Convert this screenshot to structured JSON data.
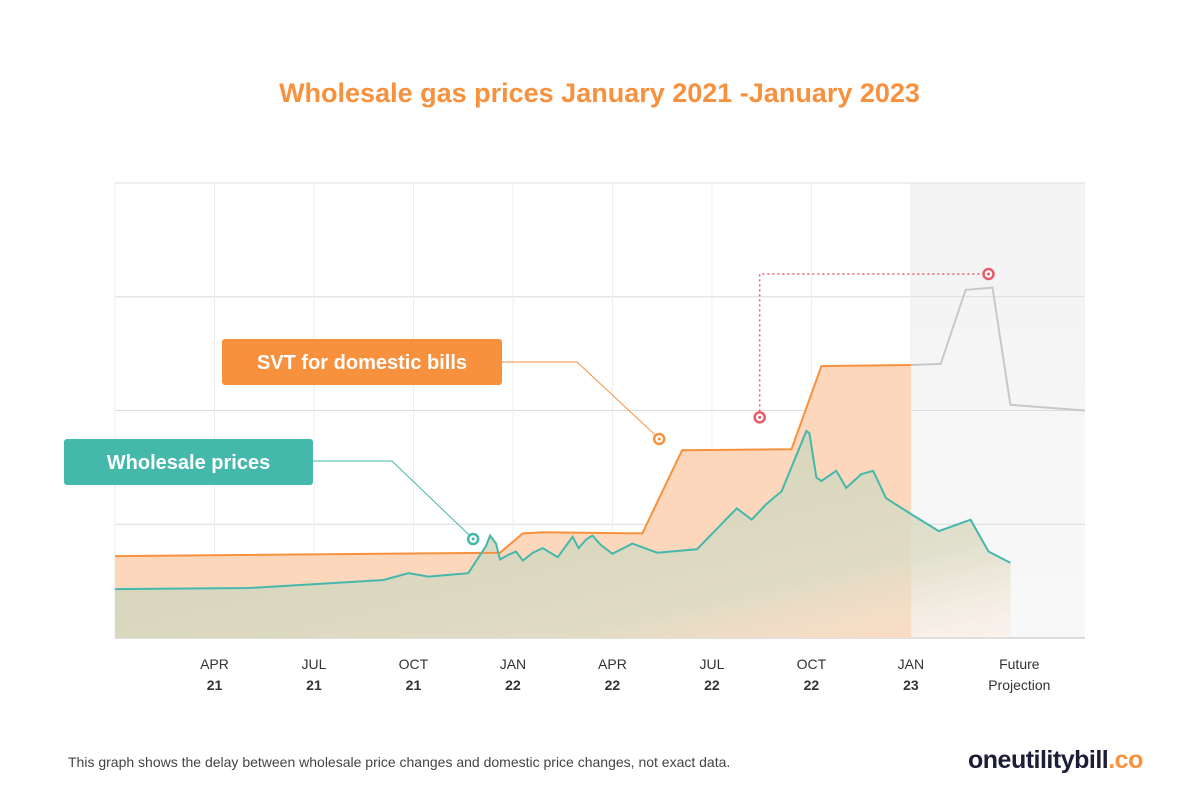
{
  "title": "Wholesale gas prices January 2021 -January 2023",
  "footnote": "This graph shows the delay between wholesale price changes and domestic price changes, not exact data.",
  "brand": {
    "name": "oneutilitybill",
    "suffix": ".co"
  },
  "colors": {
    "svt": "#f7913d",
    "svt_fill": "#fdd7bb",
    "wholesale": "#45b8ac",
    "wholesale_fill": "#d2d6bf",
    "projection": "#c8c8c8",
    "marker": "#e85c6a"
  },
  "chart_data": {
    "type": "area",
    "title": "Wholesale gas prices January 2021 -January 2023",
    "xlabel": "",
    "ylabel": "",
    "xlim": [
      0,
      9.75
    ],
    "ylim": [
      0,
      4
    ],
    "grid": true,
    "x_ticks": [
      {
        "x": 1,
        "line1": "APR",
        "line2": "21"
      },
      {
        "x": 2,
        "line1": "JUL",
        "line2": "21"
      },
      {
        "x": 3,
        "line1": "OCT",
        "line2": "21"
      },
      {
        "x": 4,
        "line1": "JAN",
        "line2": "22"
      },
      {
        "x": 5,
        "line1": "APR",
        "line2": "22"
      },
      {
        "x": 6,
        "line1": "JUL",
        "line2": "22"
      },
      {
        "x": 7,
        "line1": "OCT",
        "line2": "22"
      },
      {
        "x": 8,
        "line1": "JAN",
        "line2": "23"
      },
      {
        "x": 9.09,
        "line1": "Future",
        "line2": "Projection"
      }
    ],
    "projection_start": 8,
    "series": [
      {
        "name": "SVT for domestic bills",
        "label_box": "SVT for domestic bills",
        "points": [
          [
            0,
            0.72
          ],
          [
            3.87,
            0.75
          ],
          [
            4.1,
            0.92
          ],
          [
            4.3,
            0.93
          ],
          [
            5.3,
            0.92
          ],
          [
            5.7,
            1.65
          ],
          [
            6.8,
            1.66
          ],
          [
            7.1,
            2.39
          ],
          [
            8,
            2.4
          ]
        ]
      },
      {
        "name": "Wholesale prices",
        "label_box": "Wholesale prices",
        "points": [
          [
            0,
            0.43
          ],
          [
            1.35,
            0.44
          ],
          [
            2.7,
            0.51
          ],
          [
            2.95,
            0.57
          ],
          [
            3.15,
            0.54
          ],
          [
            3.55,
            0.57
          ],
          [
            3.73,
            0.81
          ],
          [
            3.77,
            0.9
          ],
          [
            3.83,
            0.83
          ],
          [
            3.87,
            0.69
          ],
          [
            3.95,
            0.73
          ],
          [
            4.03,
            0.76
          ],
          [
            4.1,
            0.68
          ],
          [
            4.2,
            0.75
          ],
          [
            4.3,
            0.79
          ],
          [
            4.45,
            0.71
          ],
          [
            4.6,
            0.89
          ],
          [
            4.66,
            0.79
          ],
          [
            4.74,
            0.87
          ],
          [
            4.8,
            0.9
          ],
          [
            4.88,
            0.82
          ],
          [
            5.0,
            0.74
          ],
          [
            5.2,
            0.83
          ],
          [
            5.45,
            0.75
          ],
          [
            5.85,
            0.78
          ],
          [
            5.95,
            0.87
          ],
          [
            6.05,
            0.96
          ],
          [
            6.25,
            1.14
          ],
          [
            6.4,
            1.04
          ],
          [
            6.55,
            1.18
          ],
          [
            6.7,
            1.29
          ],
          [
            6.95,
            1.82
          ],
          [
            6.98,
            1.8
          ],
          [
            7.05,
            1.41
          ],
          [
            7.1,
            1.38
          ],
          [
            7.25,
            1.47
          ],
          [
            7.35,
            1.32
          ],
          [
            7.5,
            1.44
          ],
          [
            7.62,
            1.47
          ],
          [
            7.75,
            1.23
          ],
          [
            8.0,
            1.09
          ],
          [
            8.28,
            0.94
          ],
          [
            8.6,
            1.04
          ],
          [
            8.78,
            0.76
          ],
          [
            9.0,
            0.66
          ]
        ]
      },
      {
        "name": "Future Projection",
        "points": [
          [
            8,
            2.4
          ],
          [
            8.3,
            2.41
          ],
          [
            8.55,
            3.06
          ],
          [
            8.82,
            3.08
          ],
          [
            9.0,
            2.05
          ],
          [
            9.75,
            2.0
          ]
        ]
      }
    ],
    "markers": [
      {
        "series": "Wholesale prices",
        "x": 3.6,
        "y": 0.87
      },
      {
        "series": "SVT for domestic bills",
        "x": 5.47,
        "y": 1.75
      },
      {
        "series": "Wholesale prices",
        "x": 6.48,
        "y": 1.94
      },
      {
        "series": "Future Projection",
        "x": 8.78,
        "y": 3.2
      }
    ]
  }
}
